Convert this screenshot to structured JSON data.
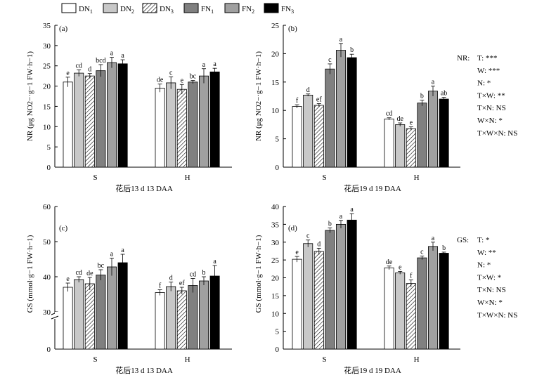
{
  "legend": [
    {
      "base": "DN",
      "sub": "1",
      "fill": "#ffffff",
      "pattern": "none"
    },
    {
      "base": "DN",
      "sub": "2",
      "fill": "#c8c8c8",
      "pattern": "none"
    },
    {
      "base": "DN",
      "sub": "3",
      "fill": "#ffffff",
      "pattern": "hatch"
    },
    {
      "base": "FN",
      "sub": "1",
      "fill": "#808080",
      "pattern": "none"
    },
    {
      "base": "FN",
      "sub": "2",
      "fill": "#a0a0a0",
      "pattern": "none"
    },
    {
      "base": "FN",
      "sub": "3",
      "fill": "#000000",
      "pattern": "none"
    }
  ],
  "chart_data": [
    {
      "type": "bar",
      "panel_label": "(a)",
      "ylabel": "NR (μg NO2−·g−1 FW·h−1)",
      "xlabel": "花后13 d  13 DAA",
      "categories": [
        "S",
        "H"
      ],
      "ylim": [
        0,
        35
      ],
      "yticks": [
        0,
        5,
        10,
        15,
        20,
        25,
        30,
        35
      ],
      "series": [
        {
          "name": "DN1",
          "values": [
            21.0,
            19.5
          ],
          "errors": [
            1.2,
            1.0
          ],
          "letters": [
            "e",
            "de"
          ]
        },
        {
          "name": "DN2",
          "values": [
            23.2,
            20.8
          ],
          "errors": [
            0.8,
            1.5
          ],
          "letters": [
            "cd",
            "c"
          ]
        },
        {
          "name": "DN3",
          "values": [
            22.5,
            19.2
          ],
          "errors": [
            0.6,
            1.2
          ],
          "letters": [
            "d",
            "e"
          ]
        },
        {
          "name": "FN1",
          "values": [
            23.8,
            21.0
          ],
          "errors": [
            1.5,
            0.4
          ],
          "letters": [
            "bcd",
            "bc"
          ]
        },
        {
          "name": "FN2",
          "values": [
            25.8,
            22.5
          ],
          "errors": [
            1.3,
            1.8
          ],
          "letters": [
            "a",
            "a"
          ]
        },
        {
          "name": "FN3",
          "values": [
            25.5,
            23.5
          ],
          "errors": [
            1.0,
            0.9
          ],
          "letters": [
            "a",
            "a"
          ]
        }
      ]
    },
    {
      "type": "bar",
      "panel_label": "(b)",
      "ylabel": "NR (μg NO2−·g−1 FW·h−1)",
      "xlabel": "花后19 d  19 DAA",
      "categories": [
        "S",
        "H"
      ],
      "ylim": [
        0,
        25
      ],
      "yticks": [
        0,
        5,
        10,
        15,
        20,
        25
      ],
      "series": [
        {
          "name": "DN1",
          "values": [
            10.7,
            8.5
          ],
          "errors": [
            0.3,
            0.2
          ],
          "letters": [
            "f",
            "cd"
          ]
        },
        {
          "name": "DN2",
          "values": [
            12.7,
            7.5
          ],
          "errors": [
            0.2,
            0.3
          ],
          "letters": [
            "d",
            "de"
          ]
        },
        {
          "name": "DN3",
          "values": [
            10.9,
            6.8
          ],
          "errors": [
            0.3,
            0.3
          ],
          "letters": [
            "ef",
            "e"
          ]
        },
        {
          "name": "FN1",
          "values": [
            17.3,
            11.3
          ],
          "errors": [
            0.9,
            0.5
          ],
          "letters": [
            "c",
            "b"
          ]
        },
        {
          "name": "FN2",
          "values": [
            20.6,
            13.4
          ],
          "errors": [
            1.2,
            0.9
          ],
          "letters": [
            "a",
            "a"
          ]
        },
        {
          "name": "FN3",
          "values": [
            19.3,
            12.0
          ],
          "errors": [
            0.6,
            0.3
          ],
          "letters": [
            "b",
            "ab"
          ]
        }
      ],
      "stats": {
        "head": "NR:",
        "lines": [
          "T: ***",
          "W: ***",
          "N: *",
          "T×W: **",
          "T×N: NS",
          "W×N: *",
          "T×W×N: NS"
        ]
      }
    },
    {
      "type": "bar",
      "panel_label": "(c)",
      "ylabel": "GS (mmol·g−1 FW·h−1)",
      "xlabel": "花后13 d  13 DAA",
      "categories": [
        "S",
        "H"
      ],
      "ylim": [
        30,
        60
      ],
      "axis_break": true,
      "yticks": [
        0,
        30,
        40,
        50,
        60
      ],
      "series": [
        {
          "name": "DN1",
          "values": [
            37.0,
            35.5
          ],
          "errors": [
            1.2,
            0.8
          ],
          "letters": [
            "e",
            "f"
          ]
        },
        {
          "name": "DN2",
          "values": [
            39.2,
            37.2
          ],
          "errors": [
            0.8,
            1.3
          ],
          "letters": [
            "cd",
            "d"
          ]
        },
        {
          "name": "DN3",
          "values": [
            38.0,
            36.0
          ],
          "errors": [
            1.8,
            1.0
          ],
          "letters": [
            "de",
            "ef"
          ]
        },
        {
          "name": "FN1",
          "values": [
            40.5,
            37.5
          ],
          "errors": [
            1.5,
            2.0
          ],
          "letters": [
            "bc",
            "cd"
          ]
        },
        {
          "name": "FN2",
          "values": [
            42.8,
            38.8
          ],
          "errors": [
            2.5,
            1.2
          ],
          "letters": [
            "a",
            "b"
          ]
        },
        {
          "name": "FN3",
          "values": [
            44.0,
            40.2
          ],
          "errors": [
            2.4,
            3.0
          ],
          "letters": [
            "a",
            "a"
          ]
        }
      ]
    },
    {
      "type": "bar",
      "panel_label": "(d)",
      "ylabel": "GS (mmol·g−1 FW·h−1)",
      "xlabel": "花后19 d  19 DAA",
      "categories": [
        "S",
        "H"
      ],
      "ylim": [
        0,
        40
      ],
      "yticks": [
        0,
        5,
        10,
        15,
        20,
        25,
        30,
        35,
        40
      ],
      "series": [
        {
          "name": "DN1",
          "values": [
            25.2,
            22.8
          ],
          "errors": [
            0.8,
            0.5
          ],
          "letters": [
            "e",
            "de"
          ]
        },
        {
          "name": "DN2",
          "values": [
            29.6,
            21.4
          ],
          "errors": [
            1.0,
            0.4
          ],
          "letters": [
            "c",
            "e"
          ]
        },
        {
          "name": "DN3",
          "values": [
            27.4,
            18.4
          ],
          "errors": [
            0.9,
            1.0
          ],
          "letters": [
            "d",
            "f"
          ]
        },
        {
          "name": "FN1",
          "values": [
            33.3,
            25.6
          ],
          "errors": [
            0.7,
            0.5
          ],
          "letters": [
            "b",
            "c"
          ]
        },
        {
          "name": "FN2",
          "values": [
            35.0,
            28.8
          ],
          "errors": [
            1.1,
            1.2
          ],
          "letters": [
            "a",
            "a"
          ]
        },
        {
          "name": "FN3",
          "values": [
            36.2,
            26.9
          ],
          "errors": [
            1.8,
            0.3
          ],
          "letters": [
            "a",
            "b"
          ]
        }
      ],
      "stats": {
        "head": "GS:",
        "lines": [
          "T: *",
          "W: **",
          "N: *",
          "T×W: *",
          "T×N: NS",
          "W×N: *",
          "T×W×N: NS"
        ]
      }
    }
  ]
}
